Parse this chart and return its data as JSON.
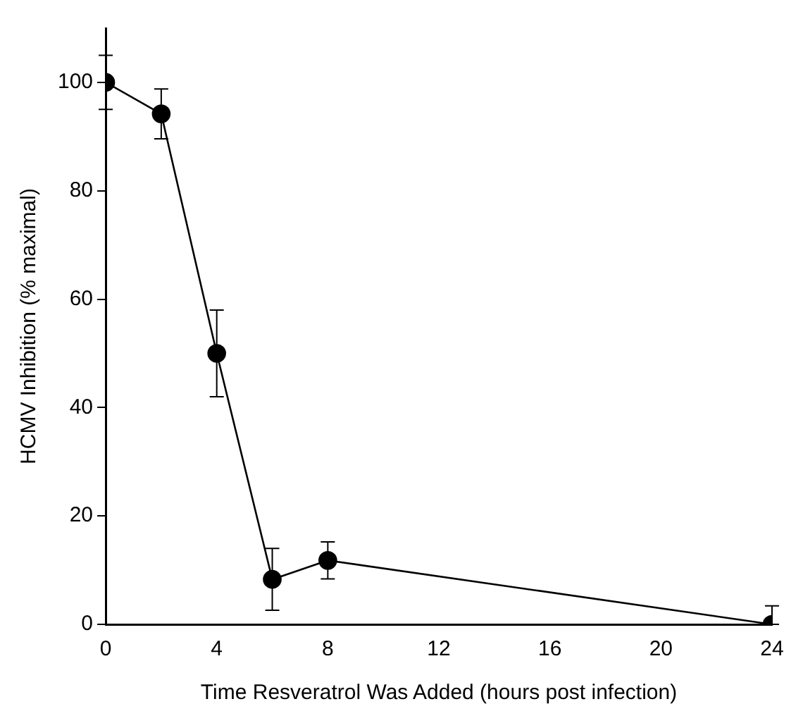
{
  "chart_data": {
    "type": "line",
    "xlabel": "Time Resveratrol Was Added (hours post infection)",
    "ylabel": "HCMV Inhibition (% maximal)",
    "x": [
      0,
      2,
      4,
      6,
      8,
      24
    ],
    "values": [
      100,
      94.2,
      50,
      8.3,
      11.8,
      0
    ],
    "errors": [
      5,
      4.6,
      8,
      5.7,
      3.4,
      [
        0,
        3.4
      ]
    ],
    "color": "#000000",
    "marker": "circle",
    "line_style": "solid",
    "grid": false,
    "legend": false,
    "xlim": [
      0,
      24
    ],
    "xticks": [
      0,
      4,
      8,
      12,
      16,
      20,
      24
    ],
    "ylim": [
      0,
      110
    ],
    "yticks": [
      0,
      20,
      40,
      60,
      80,
      100
    ]
  }
}
